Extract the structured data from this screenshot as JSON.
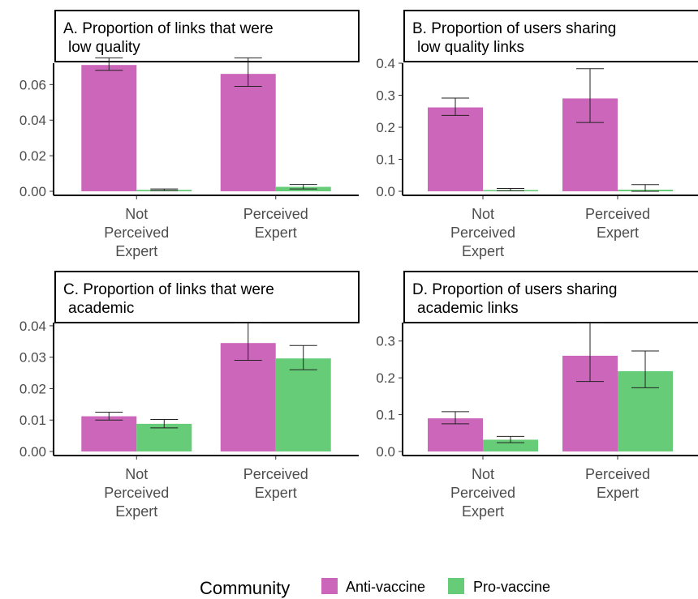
{
  "chart_data": [
    {
      "type": "bar",
      "title": [
        "A. Proportion of links that were",
        "low quality"
      ],
      "categories": [
        [
          "Not",
          "Perceived",
          "Expert"
        ],
        [
          "Perceived",
          "Expert"
        ]
      ],
      "series": [
        {
          "name": "Anti-vaccine",
          "values": [
            0.071,
            0.066
          ],
          "err_low": [
            0.068,
            0.059
          ],
          "err_high": [
            0.075,
            0.075
          ]
        },
        {
          "name": "Pro-vaccine",
          "values": [
            0.0008,
            0.0025
          ],
          "err_low": [
            0.0004,
            0.0013
          ],
          "err_high": [
            0.0013,
            0.0038
          ]
        }
      ],
      "ylim": [
        0,
        0.072
      ],
      "yticks": [
        "0.00",
        "0.02",
        "0.04",
        "0.06"
      ],
      "ytick_values": [
        0,
        0.02,
        0.04,
        0.06
      ]
    },
    {
      "type": "bar",
      "title": [
        "B. Proportion of users sharing",
        "low quality links"
      ],
      "categories": [
        [
          "Not",
          "Perceived",
          "Expert"
        ],
        [
          "Perceived",
          "Expert"
        ]
      ],
      "series": [
        {
          "name": "Anti-vaccine",
          "values": [
            0.262,
            0.29
          ],
          "err_low": [
            0.237,
            0.215
          ],
          "err_high": [
            0.291,
            0.383
          ]
        },
        {
          "name": "Pro-vaccine",
          "values": [
            0.004,
            0.005
          ],
          "err_low": [
            0.002,
            0.0
          ],
          "err_high": [
            0.009,
            0.021
          ]
        }
      ],
      "ylim": [
        0,
        0.4
      ],
      "yticks": [
        "0.0",
        "0.1",
        "0.2",
        "0.3",
        "0.4"
      ],
      "ytick_values": [
        0,
        0.1,
        0.2,
        0.3,
        0.4
      ]
    },
    {
      "type": "bar",
      "title": [
        "C. Proportion of links that were",
        "academic"
      ],
      "categories": [
        [
          "Not",
          "Perceived",
          "Expert"
        ],
        [
          "Perceived",
          "Expert"
        ]
      ],
      "series": [
        {
          "name": "Anti-vaccine",
          "values": [
            0.0112,
            0.0345
          ],
          "err_low": [
            0.01,
            0.029
          ],
          "err_high": [
            0.0125,
            0.041
          ]
        },
        {
          "name": "Pro-vaccine",
          "values": [
            0.0088,
            0.0296
          ],
          "err_low": [
            0.0075,
            0.026
          ],
          "err_high": [
            0.0102,
            0.0337
          ]
        }
      ],
      "ylim": [
        0,
        0.041
      ],
      "yticks": [
        "0.00",
        "0.01",
        "0.02",
        "0.03",
        "0.04"
      ],
      "ytick_values": [
        0,
        0.01,
        0.02,
        0.03,
        0.04
      ]
    },
    {
      "type": "bar",
      "title": [
        "D. Proportion of users sharing",
        "academic links"
      ],
      "categories": [
        [
          "Not",
          "Perceived",
          "Expert"
        ],
        [
          "Perceived",
          "Expert"
        ]
      ],
      "series": [
        {
          "name": "Anti-vaccine",
          "values": [
            0.09,
            0.26
          ],
          "err_low": [
            0.075,
            0.19
          ],
          "err_high": [
            0.108,
            0.35
          ]
        },
        {
          "name": "Pro-vaccine",
          "values": [
            0.032,
            0.218
          ],
          "err_low": [
            0.024,
            0.173
          ],
          "err_high": [
            0.041,
            0.273
          ]
        }
      ],
      "ylim": [
        0,
        0.35
      ],
      "yticks": [
        "0.0",
        "0.1",
        "0.2",
        "0.3"
      ],
      "ytick_values": [
        0,
        0.1,
        0.2,
        0.3
      ]
    }
  ],
  "legend": {
    "title": "Community",
    "items": [
      {
        "label": "Anti-vaccine",
        "color": "#CC66BB"
      },
      {
        "label": "Pro-vaccine",
        "color": "#66CC77"
      }
    ]
  }
}
